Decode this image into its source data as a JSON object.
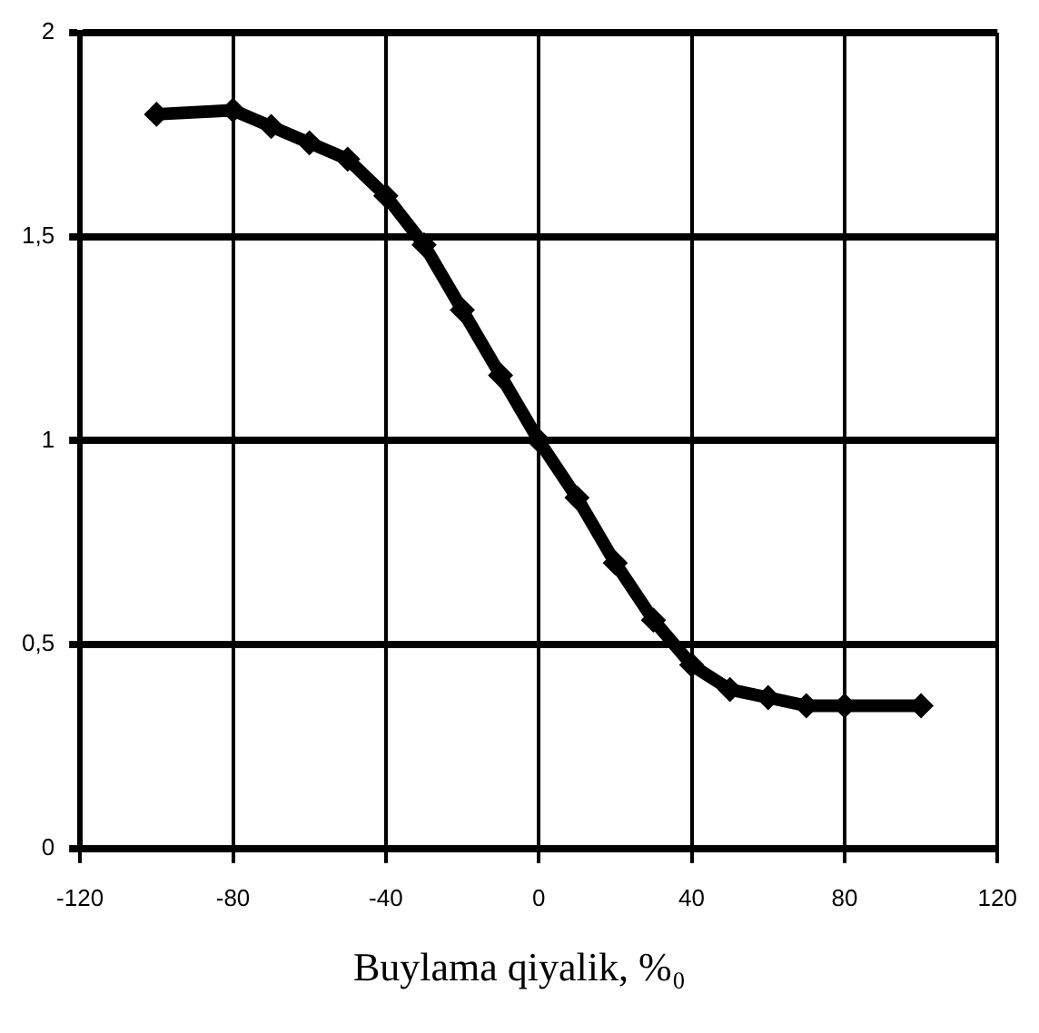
{
  "chart_data": {
    "type": "line",
    "xlabel": "Buylama qiyalik,  %₀",
    "x": [
      -100,
      -80,
      -70,
      -60,
      -50,
      -40,
      -30,
      -20,
      -10,
      0,
      10,
      20,
      30,
      40,
      50,
      60,
      70,
      80,
      100
    ],
    "series": [
      {
        "color": "#000000",
        "values": [
          1.8,
          1.81,
          1.77,
          1.73,
          1.69,
          1.6,
          1.48,
          1.32,
          1.16,
          1.0,
          0.86,
          0.7,
          0.56,
          0.45,
          0.39,
          0.37,
          0.35,
          0.35,
          0.35
        ]
      }
    ],
    "xlim": [
      -120,
      120
    ],
    "xticks": [
      -120,
      -80,
      -40,
      0,
      40,
      80,
      120
    ],
    "ylim": [
      0,
      2
    ],
    "yticks": [
      0,
      {
        "value": 0.5,
        "label": "0,5"
      },
      1,
      {
        "value": 1.5,
        "label": "1,5"
      },
      2
    ],
    "grid": true,
    "marker": "diamond",
    "line_style": "solid"
  }
}
